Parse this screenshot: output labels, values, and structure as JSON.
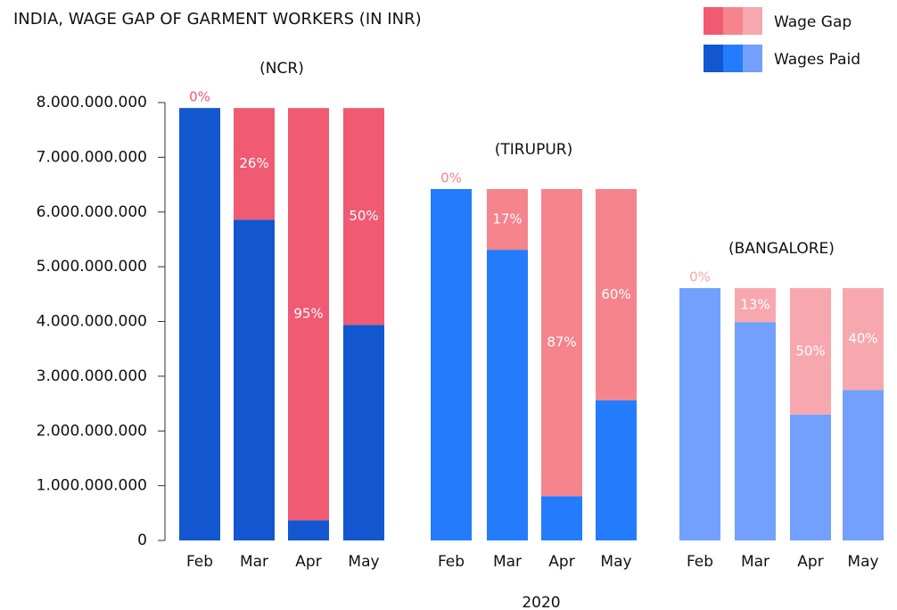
{
  "chart_data": {
    "type": "bar",
    "stacked": true,
    "title": "INDIA, WAGE GAP OF GARMENT WORKERS (IN INR)",
    "x_label": "2020",
    "ylim": [
      0,
      8000000000
    ],
    "yticks": [
      0,
      {
        "value": 1000000000,
        "label": "1.000.000.000"
      },
      {
        "value": 2000000000,
        "label": "2.000.000.000"
      },
      {
        "value": 3000000000,
        "label": "3.000.000.000"
      },
      {
        "value": 4000000000,
        "label": "4.000.000.000"
      },
      {
        "value": 5000000000,
        "label": "5.000.000.000"
      },
      {
        "value": 6000000000,
        "label": "6.000.000.000"
      },
      {
        "value": 7000000000,
        "label": "7.000.000.000"
      },
      {
        "value": 8000000000,
        "label": "8.000.000.000"
      }
    ],
    "groups": [
      {
        "name": "(NCR)",
        "categories": [
          "Feb",
          "Mar",
          "Apr",
          "May"
        ],
        "series": [
          {
            "name": "Wages Paid",
            "color": "#1257cf",
            "values": [
              7900000000,
              5860000000,
              370000000,
              3940000000
            ]
          },
          {
            "name": "Wage Gap",
            "color": "#f05a72",
            "values": [
              0,
              2040000000,
              7530000000,
              3960000000
            ]
          }
        ],
        "gap_labels": [
          "0%",
          "26%",
          "95%",
          "50%"
        ]
      },
      {
        "name": "(TIRUPUR)",
        "categories": [
          "Feb",
          "Mar",
          "Apr",
          "May"
        ],
        "series": [
          {
            "name": "Wages Paid",
            "color": "#247cfc",
            "values": [
              6420000000,
              5310000000,
              810000000,
              2560000000
            ]
          },
          {
            "name": "Wage Gap",
            "color": "#f5848d",
            "values": [
              0,
              1110000000,
              5610000000,
              3860000000
            ]
          }
        ],
        "gap_labels": [
          "0%",
          "17%",
          "87%",
          "60%"
        ]
      },
      {
        "name": "(BANGALORE)",
        "categories": [
          "Feb",
          "Mar",
          "Apr",
          "May"
        ],
        "series": [
          {
            "name": "Wages Paid",
            "color": "#73a0fc",
            "values": [
              4610000000,
              3990000000,
              2300000000,
              2750000000
            ]
          },
          {
            "name": "Wage Gap",
            "color": "#f7a8ae",
            "values": [
              0,
              620000000,
              2310000000,
              1860000000
            ]
          }
        ],
        "gap_labels": [
          "0%",
          "13%",
          "50%",
          "40%"
        ]
      }
    ]
  }
}
